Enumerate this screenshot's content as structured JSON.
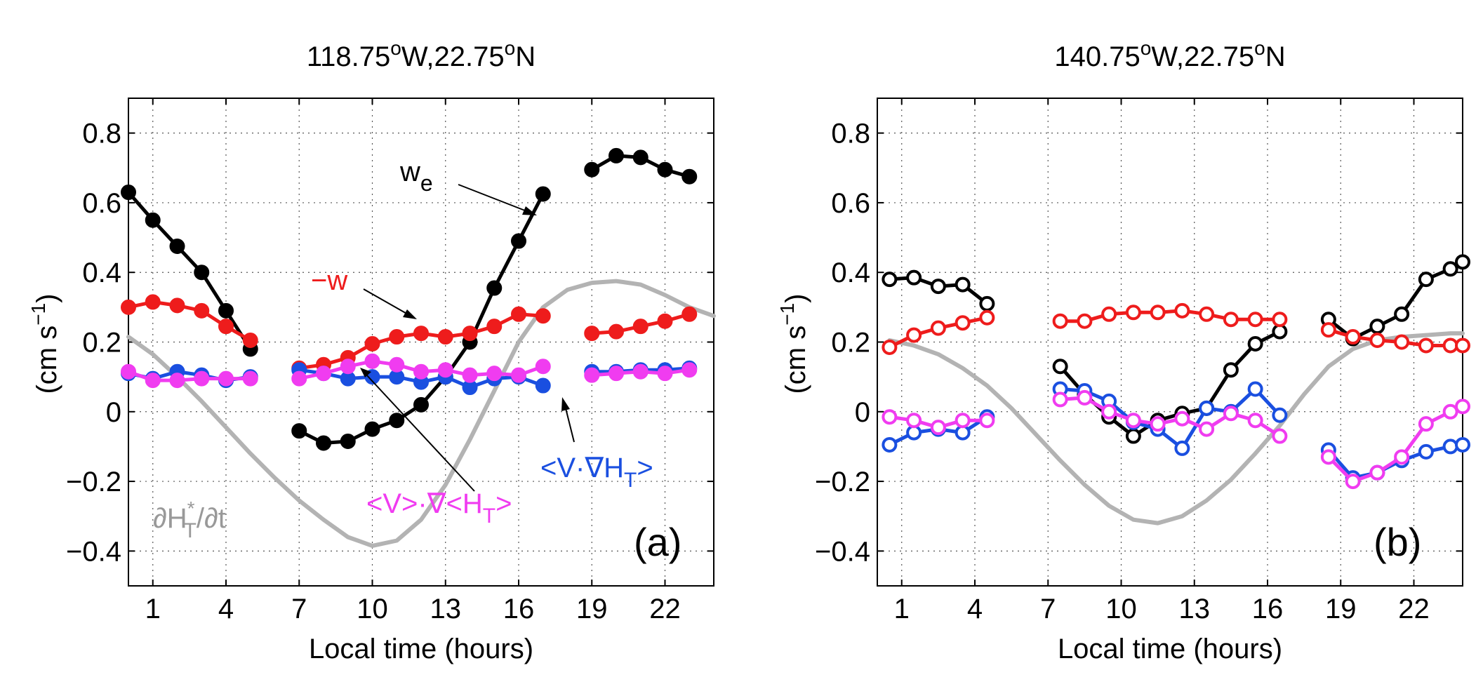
{
  "chart_data": [
    {
      "type": "line",
      "title": "118.75°W,22.75°N",
      "title_parts": {
        "lon": "118.75",
        "lon_dir": "W,22.75",
        "lat_dir": "N",
        "deg": "o"
      },
      "xlabel": "Local time (hours)",
      "ylabel": "(cm s",
      "ylabel_exp": "−1",
      "ylabel_close": ")",
      "xlim": [
        0,
        24
      ],
      "ylim": [
        -0.5,
        0.9
      ],
      "xticks": [
        1,
        4,
        7,
        10,
        13,
        16,
        19,
        22
      ],
      "xtick_labels": [
        "1",
        "4",
        "7",
        "10",
        "13",
        "16",
        "19",
        "22"
      ],
      "yticks": [
        -0.4,
        -0.2,
        0,
        0.2,
        0.4,
        0.6,
        0.8
      ],
      "ytick_labels": [
        "−0.4",
        "−0.2",
        "0",
        "0.2",
        "0.4",
        "0.6",
        "0.8"
      ],
      "grid": true,
      "panel_label": "(a)",
      "series": [
        {
          "color": "#000000",
          "marker": "filled",
          "segments": [
            {
              "x": [
                0,
                1,
                2,
                3,
                4,
                5
              ],
              "y": [
                0.63,
                0.55,
                0.475,
                0.4,
                0.29,
                0.18
              ]
            },
            {
              "x": [
                7,
                8,
                9,
                10,
                11,
                12,
                13,
                14,
                15,
                16,
                17
              ],
              "y": [
                -0.055,
                -0.09,
                -0.085,
                -0.05,
                -0.025,
                0.02,
                0.1,
                0.2,
                0.355,
                0.49,
                0.625
              ]
            },
            {
              "x": [
                19,
                20,
                21,
                22,
                23
              ],
              "y": [
                0.695,
                0.735,
                0.73,
                0.695,
                0.675
              ]
            }
          ]
        },
        {
          "color": "#ee1c1c",
          "marker": "filled",
          "segments": [
            {
              "x": [
                0,
                1,
                2,
                3,
                4,
                5
              ],
              "y": [
                0.3,
                0.315,
                0.305,
                0.29,
                0.245,
                0.205
              ]
            },
            {
              "x": [
                7,
                8,
                9,
                10,
                11,
                12,
                13,
                14,
                15,
                16,
                17
              ],
              "y": [
                0.125,
                0.135,
                0.155,
                0.195,
                0.215,
                0.225,
                0.215,
                0.225,
                0.245,
                0.28,
                0.275
              ]
            },
            {
              "x": [
                19,
                20,
                21,
                22,
                23
              ],
              "y": [
                0.225,
                0.23,
                0.245,
                0.26,
                0.28
              ]
            }
          ]
        },
        {
          "color": "#1a4fe0",
          "marker": "filled",
          "segments": [
            {
              "x": [
                0,
                1,
                2,
                3,
                4,
                5
              ],
              "y": [
                0.11,
                0.095,
                0.115,
                0.105,
                0.09,
                0.1
              ]
            },
            {
              "x": [
                7,
                8,
                9,
                10,
                11,
                12,
                13,
                14,
                15,
                16,
                17
              ],
              "y": [
                0.12,
                0.11,
                0.095,
                0.1,
                0.1,
                0.085,
                0.1,
                0.07,
                0.095,
                0.1,
                0.075
              ]
            },
            {
              "x": [
                19,
                20,
                21,
                22,
                23
              ],
              "y": [
                0.115,
                0.115,
                0.12,
                0.12,
                0.125
              ]
            }
          ]
        },
        {
          "color": "#f03cf0",
          "marker": "filled",
          "segments": [
            {
              "x": [
                0,
                1,
                2,
                3,
                4,
                5
              ],
              "y": [
                0.115,
                0.09,
                0.09,
                0.095,
                0.095,
                0.095
              ]
            },
            {
              "x": [
                7,
                8,
                9,
                10,
                11,
                12,
                13,
                14,
                15,
                16,
                17
              ],
              "y": [
                0.095,
                0.11,
                0.13,
                0.145,
                0.135,
                0.115,
                0.12,
                0.105,
                0.11,
                0.105,
                0.13
              ]
            },
            {
              "x": [
                19,
                20,
                21,
                22,
                23
              ],
              "y": [
                0.105,
                0.11,
                0.115,
                0.11,
                0.12
              ]
            }
          ]
        },
        {
          "color": "#b3b3b3",
          "marker": "none",
          "segments": [
            {
              "x": [
                0,
                1,
                2,
                3,
                4,
                5,
                6,
                7,
                8,
                9,
                10,
                11,
                12,
                13,
                14,
                15,
                16,
                17,
                18,
                19,
                20,
                21,
                22,
                23,
                24
              ],
              "y": [
                0.215,
                0.165,
                0.1,
                0.03,
                -0.045,
                -0.12,
                -0.19,
                -0.255,
                -0.31,
                -0.36,
                -0.385,
                -0.37,
                -0.31,
                -0.21,
                -0.08,
                0.06,
                0.2,
                0.3,
                0.35,
                0.37,
                0.375,
                0.365,
                0.335,
                0.3,
                0.275
              ]
            }
          ]
        }
      ],
      "annotations": [
        {
          "id": "we",
          "text": "w",
          "sub": "e",
          "color": "#000000"
        },
        {
          "id": "negw",
          "text": "−w",
          "color": "#ee1c1c"
        },
        {
          "id": "adv1",
          "text": "<V·∇H",
          "sub": "T",
          "tail": ">",
          "color": "#1a4fe0"
        },
        {
          "id": "adv2",
          "text": "<V>·∇<H",
          "sub": "T",
          "tail": ">",
          "color": "#f03cf0"
        },
        {
          "id": "dhdt",
          "text": "∂H",
          "sup": "*",
          "sub": "T",
          "tail": "/∂t",
          "color": "#999999"
        }
      ]
    },
    {
      "type": "line",
      "title": "140.75°W,22.75°N",
      "title_parts": {
        "lon": "140.75",
        "lon_dir": "W,22.75",
        "lat_dir": "N",
        "deg": "o"
      },
      "xlabel": "Local time (hours)",
      "ylabel": "(cm s",
      "ylabel_exp": "−1",
      "ylabel_close": ")",
      "xlim": [
        0,
        24
      ],
      "ylim": [
        -0.5,
        0.9
      ],
      "xticks": [
        1,
        4,
        7,
        10,
        13,
        16,
        19,
        22
      ],
      "xtick_labels": [
        "1",
        "4",
        "7",
        "10",
        "13",
        "16",
        "19",
        "22"
      ],
      "yticks": [
        -0.4,
        -0.2,
        0,
        0.2,
        0.4,
        0.6,
        0.8
      ],
      "ytick_labels": [
        "−0.4",
        "−0.2",
        "0",
        "0.2",
        "0.4",
        "0.6",
        "0.8"
      ],
      "grid": true,
      "panel_label": "(b)",
      "series": [
        {
          "color": "#000000",
          "marker": "open",
          "segments": [
            {
              "x": [
                0.5,
                1.5,
                2.5,
                3.5,
                4.5
              ],
              "y": [
                0.38,
                0.385,
                0.36,
                0.365,
                0.31
              ]
            },
            {
              "x": [
                7.5,
                8.5,
                9.5,
                10.5,
                11.5,
                12.5,
                13.5,
                14.5,
                15.5,
                16.5
              ],
              "y": [
                0.13,
                0.05,
                -0.015,
                -0.07,
                -0.025,
                -0.005,
                0.01,
                0.12,
                0.195,
                0.23
              ]
            },
            {
              "x": [
                18.5,
                19.5,
                20.5,
                21.5,
                22.5,
                23.5,
                24.0
              ],
              "y": [
                0.265,
                0.21,
                0.245,
                0.28,
                0.38,
                0.41,
                0.43
              ]
            }
          ]
        },
        {
          "color": "#ee1c1c",
          "marker": "open",
          "segments": [
            {
              "x": [
                0.5,
                1.5,
                2.5,
                3.5,
                4.5
              ],
              "y": [
                0.185,
                0.22,
                0.24,
                0.255,
                0.27
              ]
            },
            {
              "x": [
                7.5,
                8.5,
                9.5,
                10.5,
                11.5,
                12.5,
                13.5,
                14.5,
                15.5,
                16.5
              ],
              "y": [
                0.26,
                0.26,
                0.28,
                0.285,
                0.285,
                0.29,
                0.28,
                0.265,
                0.265,
                0.265
              ]
            },
            {
              "x": [
                18.5,
                19.5,
                20.5,
                21.5,
                22.5,
                23.5,
                24.0
              ],
              "y": [
                0.235,
                0.215,
                0.205,
                0.2,
                0.19,
                0.19,
                0.19
              ]
            }
          ]
        },
        {
          "color": "#1a4fe0",
          "marker": "open",
          "segments": [
            {
              "x": [
                0.5,
                1.5,
                2.5,
                3.5,
                4.5
              ],
              "y": [
                -0.095,
                -0.06,
                -0.05,
                -0.06,
                -0.015
              ]
            },
            {
              "x": [
                7.5,
                8.5,
                9.5,
                10.5,
                11.5,
                12.5,
                13.5,
                14.5,
                15.5,
                16.5
              ],
              "y": [
                0.065,
                0.06,
                0.03,
                -0.03,
                -0.05,
                -0.105,
                0.01,
                0.0,
                0.065,
                -0.01
              ]
            },
            {
              "x": [
                18.5,
                19.5,
                20.5,
                21.5,
                22.5,
                23.5,
                24.0
              ],
              "y": [
                -0.11,
                -0.19,
                -0.175,
                -0.14,
                -0.115,
                -0.1,
                -0.095
              ]
            }
          ]
        },
        {
          "color": "#f03cf0",
          "marker": "open",
          "segments": [
            {
              "x": [
                0.5,
                1.5,
                2.5,
                3.5,
                4.5
              ],
              "y": [
                -0.015,
                -0.025,
                -0.045,
                -0.025,
                -0.025
              ]
            },
            {
              "x": [
                7.5,
                8.5,
                9.5,
                10.5,
                11.5,
                12.5,
                13.5,
                14.5,
                15.5,
                16.5
              ],
              "y": [
                0.035,
                0.04,
                0.0,
                -0.025,
                -0.035,
                -0.02,
                -0.05,
                -0.005,
                -0.025,
                -0.07
              ]
            },
            {
              "x": [
                18.5,
                19.5,
                20.5,
                21.5,
                22.5,
                23.5,
                24.0
              ],
              "y": [
                -0.13,
                -0.2,
                -0.175,
                -0.13,
                -0.035,
                0.0,
                0.015
              ]
            }
          ]
        },
        {
          "color": "#b3b3b3",
          "marker": "none",
          "segments": [
            {
              "x": [
                0.5,
                1.5,
                2.5,
                3.5,
                4.5,
                5.5,
                6.5,
                7.5,
                8.5,
                9.5,
                10.5,
                11.5,
                12.5,
                13.5,
                14.5,
                15.5,
                16.5,
                17.5,
                18.5,
                19.5,
                20.5,
                21.5,
                22.5,
                23.5,
                24.0
              ],
              "y": [
                0.205,
                0.19,
                0.165,
                0.125,
                0.075,
                0.01,
                -0.065,
                -0.14,
                -0.21,
                -0.27,
                -0.31,
                -0.32,
                -0.3,
                -0.255,
                -0.195,
                -0.12,
                -0.04,
                0.05,
                0.13,
                0.18,
                0.205,
                0.215,
                0.22,
                0.225,
                0.225
              ]
            }
          ]
        }
      ],
      "annotations": []
    }
  ]
}
